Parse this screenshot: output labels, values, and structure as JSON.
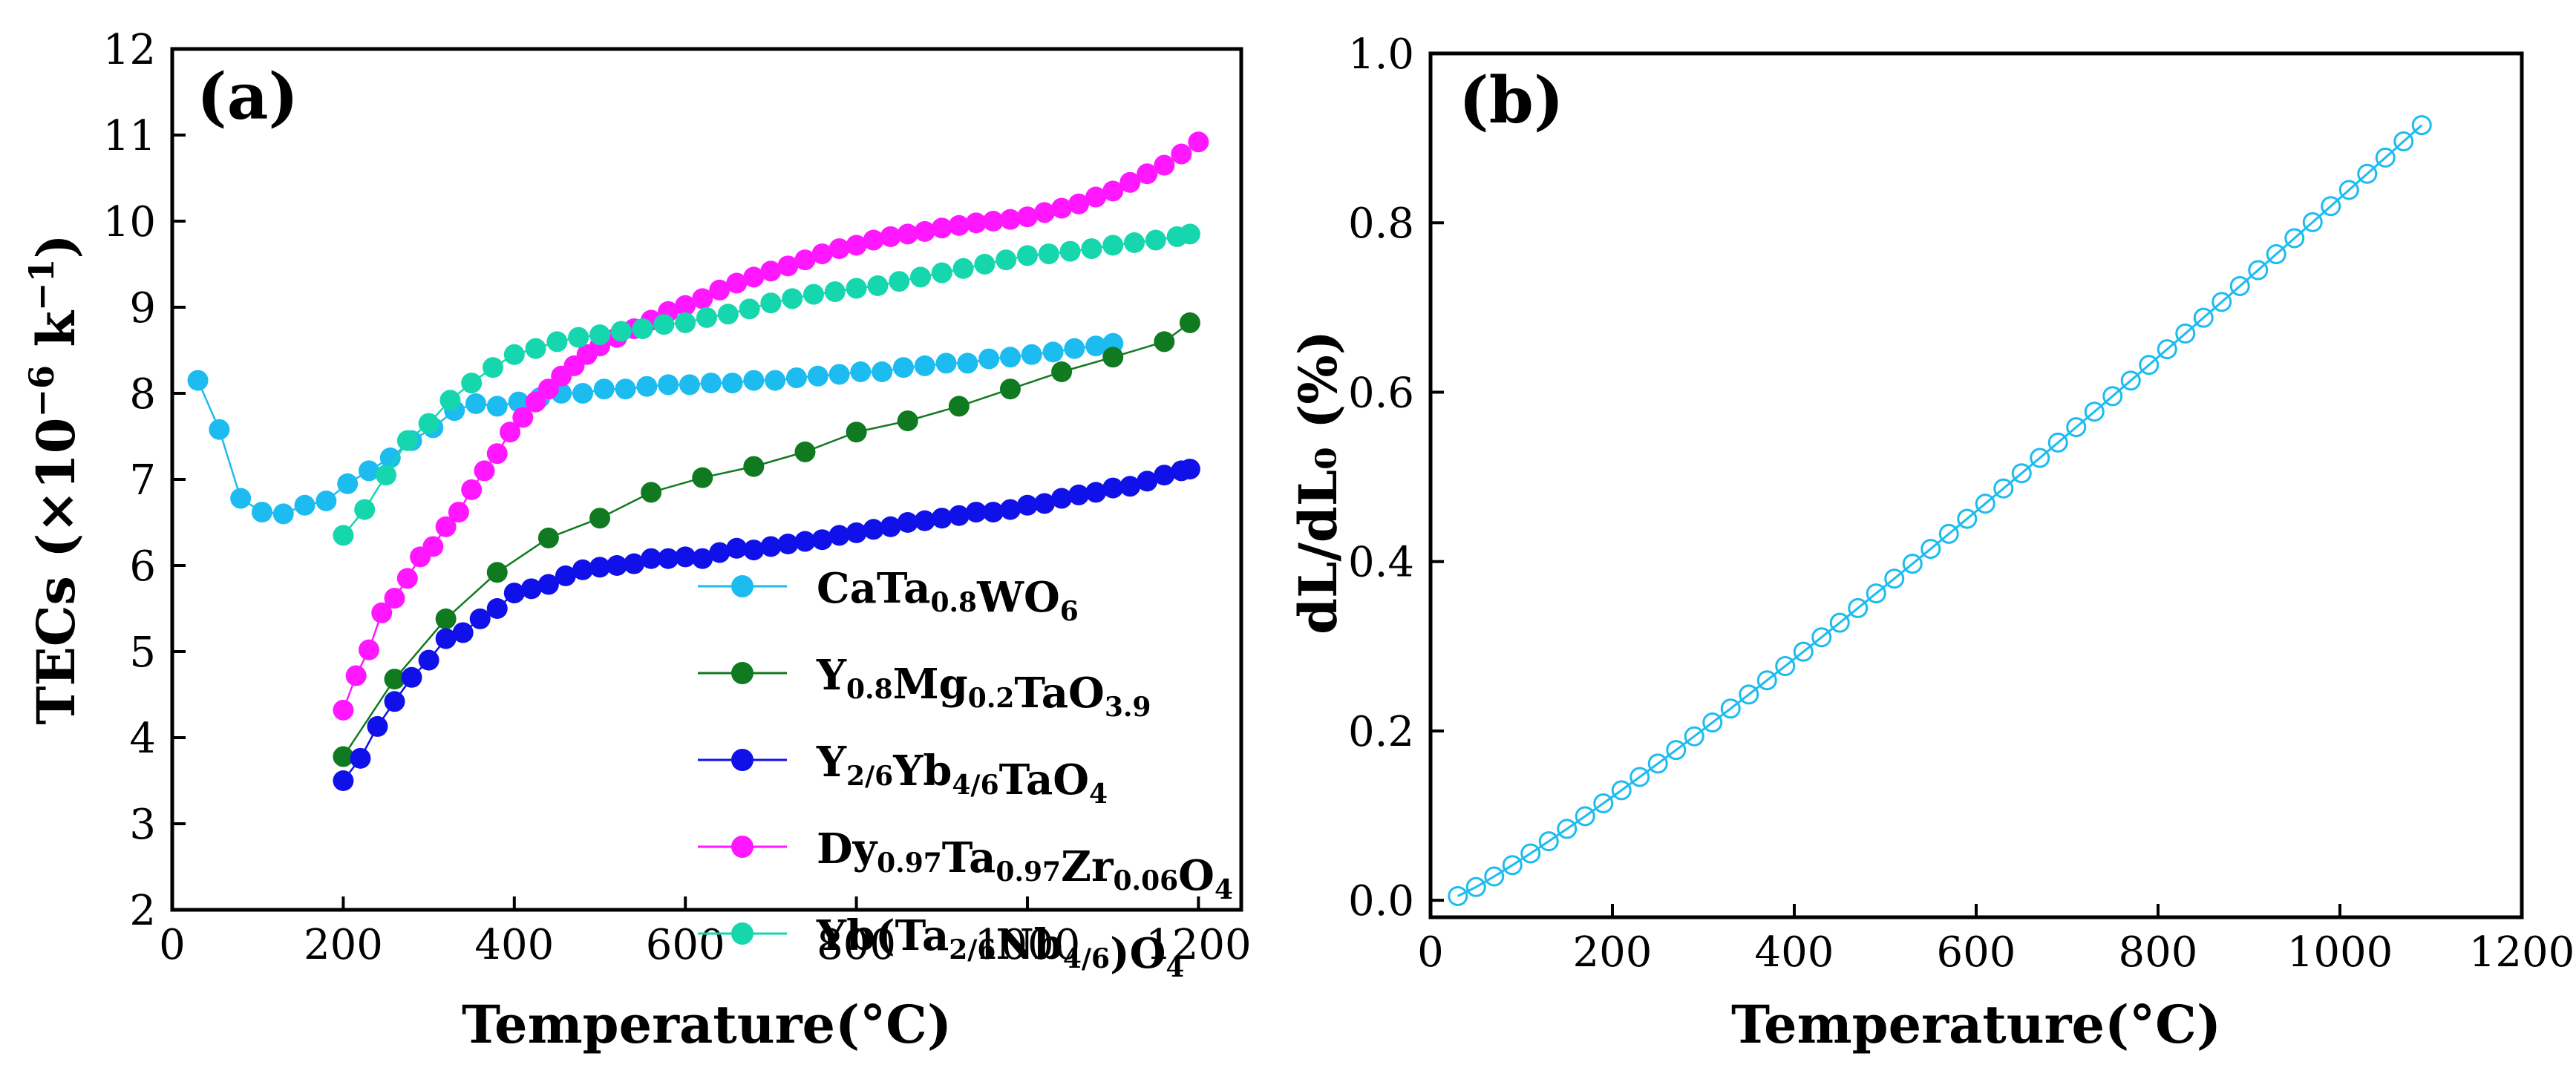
{
  "panels": [
    {
      "id": "a",
      "panel_label": "(a)",
      "xlabel": "Temperature(°C)",
      "ylabel_main": "TECs (×10",
      "ylabel_sup": "−6",
      "ylabel_tail": " k",
      "ylabel_sup2": "−1",
      "ylabel_close": ")"
    },
    {
      "id": "b",
      "panel_label": "(b)",
      "xlabel": "Temperature(°C)",
      "ylabel": "dL/dL₀ (%)"
    }
  ],
  "legend_a": [
    {
      "parts": [
        {
          "t": "CaTa"
        },
        {
          "t": "0.8",
          "s": "sub"
        },
        {
          "t": "WO"
        },
        {
          "t": "6",
          "s": "sub"
        }
      ]
    },
    {
      "parts": [
        {
          "t": "Y"
        },
        {
          "t": "0.8",
          "s": "sub"
        },
        {
          "t": "Mg"
        },
        {
          "t": "0.2",
          "s": "sub"
        },
        {
          "t": "TaO"
        },
        {
          "t": "3.9",
          "s": "sub"
        }
      ]
    },
    {
      "parts": [
        {
          "t": "Y"
        },
        {
          "t": "2/6",
          "s": "sub"
        },
        {
          "t": "Yb"
        },
        {
          "t": "4/6",
          "s": "sub"
        },
        {
          "t": "TaO"
        },
        {
          "t": "4",
          "s": "sub"
        }
      ]
    },
    {
      "parts": [
        {
          "t": "Dy"
        },
        {
          "t": "0.97",
          "s": "sub"
        },
        {
          "t": "Ta"
        },
        {
          "t": "0.97",
          "s": "sub"
        },
        {
          "t": "Zr"
        },
        {
          "t": "0.06",
          "s": "sub"
        },
        {
          "t": "O"
        },
        {
          "t": "4",
          "s": "sub"
        }
      ]
    },
    {
      "parts": [
        {
          "t": "Yb(Ta"
        },
        {
          "t": "2/6",
          "s": "sub"
        },
        {
          "t": "Nb"
        },
        {
          "t": "4/6",
          "s": "sub"
        },
        {
          "t": ")O"
        },
        {
          "t": "4",
          "s": "sub"
        }
      ]
    }
  ],
  "chart_data": [
    {
      "type": "line",
      "panel": "a",
      "title": "",
      "xlabel": "Temperature(°C)",
      "ylabel": "TECs (×10^-6 k^-1)",
      "xlim": [
        0,
        1250
      ],
      "ylim": [
        2,
        12
      ],
      "xticks": [
        0,
        200,
        400,
        600,
        800,
        1000,
        1200
      ],
      "yticks": [
        2,
        3,
        4,
        5,
        6,
        7,
        8,
        9,
        10,
        11,
        12
      ],
      "legend_position": "bottom-right",
      "series": [
        {
          "name": "CaTa0.8WO6",
          "color": "#1cbcf0",
          "x": [
            30,
            55,
            80,
            105,
            130,
            155,
            180,
            205,
            230,
            255,
            280,
            305,
            330,
            355,
            380,
            405,
            430,
            455,
            480,
            505,
            530,
            555,
            580,
            605,
            630,
            655,
            680,
            705,
            730,
            755,
            780,
            805,
            830,
            855,
            880,
            905,
            930,
            955,
            980,
            1005,
            1030,
            1055,
            1080,
            1100
          ],
          "y": [
            8.15,
            7.58,
            6.78,
            6.62,
            6.6,
            6.7,
            6.75,
            6.95,
            7.1,
            7.25,
            7.45,
            7.6,
            7.8,
            7.88,
            7.85,
            7.9,
            7.95,
            8.0,
            8.0,
            8.05,
            8.05,
            8.08,
            8.1,
            8.1,
            8.12,
            8.12,
            8.15,
            8.15,
            8.18,
            8.2,
            8.22,
            8.25,
            8.25,
            8.3,
            8.32,
            8.35,
            8.35,
            8.4,
            8.42,
            8.45,
            8.48,
            8.52,
            8.55,
            8.58
          ]
        },
        {
          "name": "Y0.8Mg0.2TaO3.9",
          "color": "#0f7a1f",
          "x": [
            200,
            260,
            320,
            380,
            440,
            500,
            560,
            620,
            680,
            740,
            800,
            860,
            920,
            980,
            1040,
            1100,
            1160,
            1190
          ],
          "y": [
            3.78,
            4.68,
            5.38,
            5.92,
            6.32,
            6.55,
            6.85,
            7.02,
            7.15,
            7.32,
            7.55,
            7.68,
            7.85,
            8.05,
            8.25,
            8.42,
            8.6,
            8.82
          ]
        },
        {
          "name": "Y2/6Yb4/6TaO4",
          "color": "#1010e8",
          "x": [
            200,
            220,
            240,
            260,
            280,
            300,
            320,
            340,
            360,
            380,
            400,
            420,
            440,
            460,
            480,
            500,
            520,
            540,
            560,
            580,
            600,
            620,
            640,
            660,
            680,
            700,
            720,
            740,
            760,
            780,
            800,
            820,
            840,
            860,
            880,
            900,
            920,
            940,
            960,
            980,
            1000,
            1020,
            1040,
            1060,
            1080,
            1100,
            1120,
            1140,
            1160,
            1180,
            1190
          ],
          "y": [
            3.5,
            3.76,
            4.13,
            4.42,
            4.7,
            4.9,
            5.15,
            5.22,
            5.38,
            5.5,
            5.68,
            5.73,
            5.78,
            5.88,
            5.95,
            5.98,
            6.0,
            6.02,
            6.08,
            6.08,
            6.1,
            6.08,
            6.15,
            6.2,
            6.18,
            6.22,
            6.25,
            6.28,
            6.3,
            6.35,
            6.38,
            6.42,
            6.45,
            6.5,
            6.52,
            6.55,
            6.58,
            6.62,
            6.62,
            6.65,
            6.7,
            6.72,
            6.78,
            6.82,
            6.85,
            6.9,
            6.92,
            6.98,
            7.05,
            7.1,
            7.12
          ]
        },
        {
          "name": "Dy0.97Ta0.97Zr0.06O4",
          "color": "#ff18ff",
          "x": [
            200,
            215,
            230,
            245,
            260,
            275,
            290,
            305,
            320,
            335,
            350,
            365,
            380,
            395,
            410,
            425,
            440,
            455,
            470,
            485,
            500,
            520,
            540,
            560,
            580,
            600,
            620,
            640,
            660,
            680,
            700,
            720,
            740,
            760,
            780,
            800,
            820,
            840,
            860,
            880,
            900,
            920,
            940,
            960,
            980,
            1000,
            1020,
            1040,
            1060,
            1080,
            1100,
            1120,
            1140,
            1160,
            1180,
            1200
          ],
          "y": [
            4.32,
            4.72,
            5.02,
            5.45,
            5.62,
            5.85,
            6.1,
            6.22,
            6.45,
            6.62,
            6.88,
            7.1,
            7.3,
            7.55,
            7.72,
            7.9,
            8.05,
            8.2,
            8.32,
            8.45,
            8.55,
            8.65,
            8.75,
            8.85,
            8.95,
            9.02,
            9.1,
            9.2,
            9.28,
            9.35,
            9.42,
            9.48,
            9.55,
            9.62,
            9.68,
            9.72,
            9.78,
            9.82,
            9.85,
            9.88,
            9.92,
            9.95,
            9.98,
            10.0,
            10.02,
            10.05,
            10.1,
            10.15,
            10.2,
            10.28,
            10.35,
            10.45,
            10.55,
            10.65,
            10.78,
            10.92
          ]
        },
        {
          "name": "Yb(Ta2/6Nb4/6)O4",
          "color": "#16d6ad",
          "x": [
            200,
            225,
            250,
            275,
            300,
            325,
            350,
            375,
            400,
            425,
            450,
            475,
            500,
            525,
            550,
            575,
            600,
            625,
            650,
            675,
            700,
            725,
            750,
            775,
            800,
            825,
            850,
            875,
            900,
            925,
            950,
            975,
            1000,
            1025,
            1050,
            1075,
            1100,
            1125,
            1150,
            1175,
            1190
          ],
          "y": [
            6.35,
            6.65,
            7.05,
            7.45,
            7.65,
            7.92,
            8.12,
            8.3,
            8.45,
            8.52,
            8.6,
            8.65,
            8.68,
            8.72,
            8.75,
            8.8,
            8.82,
            8.88,
            8.92,
            8.98,
            9.05,
            9.1,
            9.15,
            9.18,
            9.22,
            9.25,
            9.3,
            9.35,
            9.4,
            9.45,
            9.5,
            9.55,
            9.6,
            9.62,
            9.65,
            9.68,
            9.72,
            9.75,
            9.78,
            9.82,
            9.85
          ]
        }
      ]
    },
    {
      "type": "line",
      "panel": "b",
      "title": "",
      "xlabel": "Temperature(°C)",
      "ylabel": "dL/dL0 (%)",
      "xlim": [
        0,
        1200
      ],
      "ylim": [
        -0.02,
        1.0
      ],
      "xticks": [
        0,
        200,
        400,
        600,
        800,
        1000,
        1200
      ],
      "yticks": [
        0.0,
        0.2,
        0.4,
        0.6,
        0.8,
        1.0
      ],
      "ytick_labels": [
        "0.0",
        "0.2",
        "0.4",
        "0.6",
        "0.8",
        "1.0"
      ],
      "series": [
        {
          "name": "dL/dL0",
          "color": "#1cbcf0",
          "marker": "open-circle",
          "x_start": 30,
          "x_end": 1100,
          "x_step": 20,
          "y_start": 0.005,
          "y_end": 0.925,
          "curvature": 1.12
        }
      ]
    }
  ]
}
